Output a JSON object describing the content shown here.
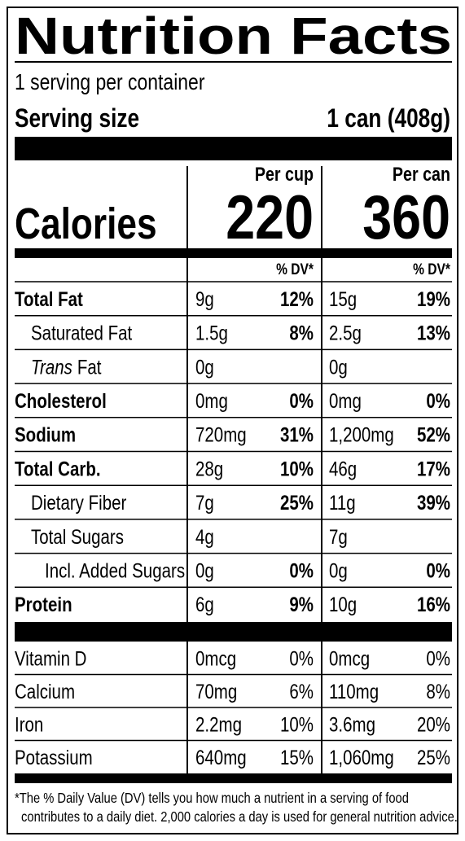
{
  "title": "Nutrition Facts",
  "servings": "1 serving per container",
  "serving_size": {
    "label": "Serving size",
    "value": "1 can (408g)"
  },
  "columns": [
    "Per cup",
    "Per can"
  ],
  "calories": {
    "label": "Calories",
    "values": [
      "220",
      "360"
    ]
  },
  "dv_header": [
    "% DV*",
    "% DV*"
  ],
  "nutrients": [
    {
      "name": "Total Fat",
      "bold": true,
      "indent": 0,
      "cup": [
        "9g",
        "12%"
      ],
      "can": [
        "15g",
        "19%"
      ]
    },
    {
      "name": "Saturated Fat",
      "bold": false,
      "indent": 1,
      "cup": [
        "1.5g",
        "8%"
      ],
      "can": [
        "2.5g",
        "13%"
      ]
    },
    {
      "name_italic": "Trans",
      "name": "Fat",
      "bold": false,
      "indent": 1,
      "cup": [
        "0g"
      ],
      "can": [
        "0g"
      ]
    },
    {
      "name": "Cholesterol",
      "bold": true,
      "indent": 0,
      "cup": [
        "0mg",
        "0%"
      ],
      "can": [
        "0mg",
        "0%"
      ]
    },
    {
      "name": "Sodium",
      "bold": true,
      "indent": 0,
      "cup": [
        "720mg",
        "31%"
      ],
      "can": [
        "1,200mg",
        "52%"
      ]
    },
    {
      "name": "Total Carb.",
      "bold": true,
      "indent": 0,
      "cup": [
        "28g",
        "10%"
      ],
      "can": [
        "46g",
        "17%"
      ]
    },
    {
      "name": "Dietary Fiber",
      "bold": false,
      "indent": 1,
      "cup": [
        "7g",
        "25%"
      ],
      "can": [
        "11g",
        "39%"
      ]
    },
    {
      "name": "Total Sugars",
      "bold": false,
      "indent": 1,
      "cup": [
        "4g"
      ],
      "can": [
        "7g"
      ]
    },
    {
      "name": "Incl. Added Sugars",
      "bold": false,
      "indent": 2,
      "cup": [
        "0g",
        "0%"
      ],
      "can": [
        "0g",
        "0%"
      ]
    },
    {
      "name": "Protein",
      "bold": true,
      "indent": 0,
      "cup": [
        "6g",
        "9%"
      ],
      "can": [
        "10g",
        "16%"
      ]
    }
  ],
  "vitamins": [
    {
      "name": "Vitamin D",
      "cup": [
        "0mcg",
        "0%"
      ],
      "can": [
        "0mcg",
        "0%"
      ]
    },
    {
      "name": "Calcium",
      "cup": [
        "70mg",
        "6%"
      ],
      "can": [
        "110mg",
        "8%"
      ]
    },
    {
      "name": "Iron",
      "cup": [
        "2.2mg",
        "10%"
      ],
      "can": [
        "3.6mg",
        "20%"
      ]
    },
    {
      "name": "Potassium",
      "cup": [
        "640mg",
        "15%"
      ],
      "can": [
        "1,060mg",
        "25%"
      ]
    }
  ],
  "footnote": [
    "*The % Daily Value (DV) tells you how much a nutrient in a serving of food",
    "contributes to a daily diet. 2,000 calories a day is used for general nutrition advice."
  ]
}
